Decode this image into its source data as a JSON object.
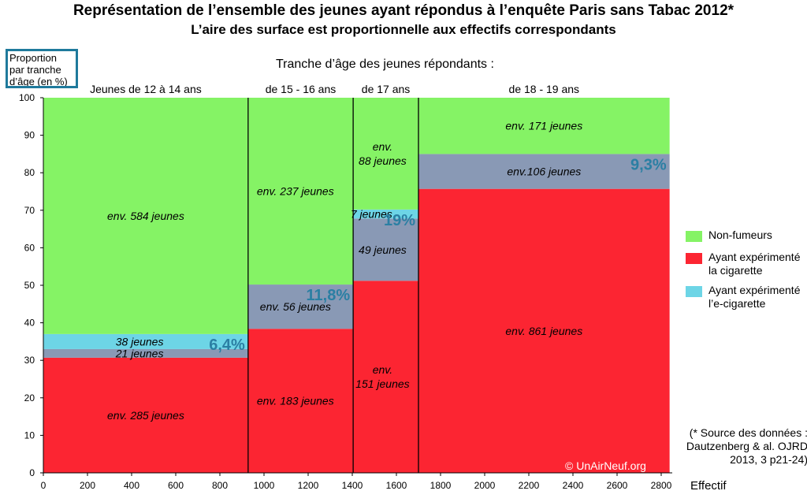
{
  "title": "Représentation de l’ensemble des jeunes ayant répondus à l’enquête Paris sans Tabac 2012*",
  "subtitle": "L’aire des surface est proportionnelle aux effectifs correspondants",
  "y_axis_label": "Proportion par tranche d’âge (en %)",
  "x_header": "Tranche d’âge des jeunes répondants :",
  "x_axis_label": "Effectif",
  "source_note": "(* Source des données : Dautzenberg & al. OJRD 2013, 3 p21-24)",
  "copyright": "© UnAirNeuf.org",
  "colors": {
    "non_fumeurs": "#85f365",
    "cigarette": "#fc2532",
    "ecigarette": "#6dd5e6",
    "overlap": "#8999b5",
    "percent_label": "#2b7fa3",
    "divider": "#000000"
  },
  "legend": [
    {
      "key": "non_fumeurs",
      "label": "Non-fumeurs"
    },
    {
      "key": "cigarette",
      "label": "Ayant expérimenté la cigarette"
    },
    {
      "key": "ecigarette",
      "label": "Ayant expérimenté l’e-cigarette"
    }
  ],
  "chart_data": {
    "type": "mosaic",
    "title": "Représentation de l’ensemble des jeunes ayant répondus à l’enquête Paris sans Tabac 2012*",
    "xlabel": "Effectif",
    "ylabel": "Proportion par tranche d’âge (en %)",
    "xlim": [
      0,
      2850
    ],
    "ylim": [
      0,
      100
    ],
    "x_ticks": [
      0,
      200,
      400,
      600,
      800,
      1000,
      1200,
      1400,
      1600,
      1800,
      2000,
      2200,
      2400,
      2600,
      2800
    ],
    "y_ticks": [
      0,
      10,
      20,
      30,
      40,
      50,
      60,
      70,
      80,
      90,
      100
    ],
    "groups": [
      {
        "label": "Jeunes de 12 à 14 ans",
        "x_start": 0,
        "x_end": 928,
        "segments": [
          {
            "category": "cigarette",
            "y0": 0,
            "y1": 30.7,
            "label": "env. 285 jeunes"
          },
          {
            "category": "overlap",
            "y0": 30.7,
            "y1": 33,
            "label": "21 jeunes"
          },
          {
            "category": "ecigarette",
            "y0": 33,
            "y1": 37,
            "label": "38 jeunes"
          },
          {
            "category": "non_fumeurs",
            "y0": 37,
            "y1": 100,
            "label": "env. 584 jeunes"
          }
        ],
        "percent_label": "6,4%"
      },
      {
        "label": "de 15 - 16 ans",
        "x_start": 928,
        "x_end": 1404,
        "segments": [
          {
            "category": "cigarette",
            "y0": 0,
            "y1": 38.4,
            "label": "env. 183 jeunes"
          },
          {
            "category": "overlap",
            "y0": 38.4,
            "y1": 50.2,
            "label": "env. 56 jeunes"
          },
          {
            "category": "non_fumeurs",
            "y0": 50.2,
            "y1": 100,
            "label": "env. 237 jeunes"
          }
        ],
        "percent_label": "11,8%"
      },
      {
        "label": "de 17 ans",
        "x_start": 1404,
        "x_end": 1700,
        "segments": [
          {
            "category": "cigarette",
            "y0": 0,
            "y1": 51.2,
            "label": "env. 151 jeunes"
          },
          {
            "category": "overlap",
            "y0": 51.2,
            "y1": 67.8,
            "label": "49 jeunes"
          },
          {
            "category": "ecigarette",
            "y0": 67.8,
            "y1": 70.2,
            "label": "7 jeunes"
          },
          {
            "category": "non_fumeurs",
            "y0": 70.2,
            "y1": 100,
            "label": "env. 88 jeunes"
          }
        ],
        "percent_label": "19%"
      },
      {
        "label": "de 18 - 19 ans",
        "x_start": 1700,
        "x_end": 2838,
        "segments": [
          {
            "category": "cigarette",
            "y0": 0,
            "y1": 75.7,
            "label": "env. 861 jeunes"
          },
          {
            "category": "overlap",
            "y0": 75.7,
            "y1": 85,
            "label": "env.106 jeunes"
          },
          {
            "category": "non_fumeurs",
            "y0": 85,
            "y1": 100,
            "label": "env. 171 jeunes"
          }
        ],
        "percent_label": "9,3%"
      }
    ]
  }
}
